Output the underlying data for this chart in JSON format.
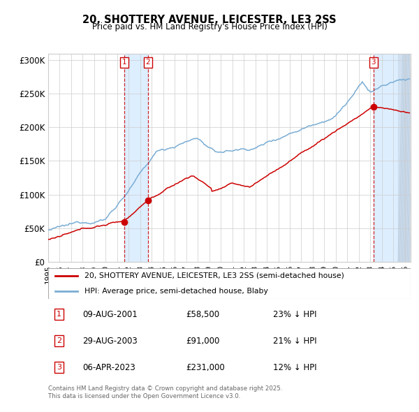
{
  "title": "20, SHOTTERY AVENUE, LEICESTER, LE3 2SS",
  "subtitle": "Price paid vs. HM Land Registry's House Price Index (HPI)",
  "ylim": [
    0,
    310000
  ],
  "xlim_start": 1995.0,
  "xlim_end": 2026.5,
  "yticks": [
    0,
    50000,
    100000,
    150000,
    200000,
    250000,
    300000
  ],
  "ytick_labels": [
    "£0",
    "£50K",
    "£100K",
    "£150K",
    "£200K",
    "£250K",
    "£300K"
  ],
  "xticks": [
    1995,
    1996,
    1997,
    1998,
    1999,
    2000,
    2001,
    2002,
    2003,
    2004,
    2005,
    2006,
    2007,
    2008,
    2009,
    2010,
    2011,
    2012,
    2013,
    2014,
    2015,
    2016,
    2017,
    2018,
    2019,
    2020,
    2021,
    2022,
    2023,
    2024,
    2025,
    2026
  ],
  "transaction_dates": [
    "09-AUG-2001",
    "29-AUG-2003",
    "06-APR-2023"
  ],
  "transaction_prices": [
    58500,
    91000,
    231000
  ],
  "transaction_price_labels": [
    "£58,500",
    "£91,000",
    "£231,000"
  ],
  "transaction_hpi_diff": [
    "23% ↓ HPI",
    "21% ↓ HPI",
    "12% ↓ HPI"
  ],
  "transaction_years": [
    2001.61,
    2003.66,
    2023.26
  ],
  "label_red": "20, SHOTTERY AVENUE, LEICESTER, LE3 2SS (semi-detached house)",
  "label_blue": "HPI: Average price, semi-detached house, Blaby",
  "footnote": "Contains HM Land Registry data © Crown copyright and database right 2025.\nThis data is licensed under the Open Government Licence v3.0.",
  "red_color": "#cc0000",
  "blue_color": "#7aadd4",
  "bg_color": "#ffffff",
  "grid_color": "#cccccc",
  "vline_color": "#cc0000",
  "shade_color": "#ddeeff",
  "hatch_color": "#c8d8e8"
}
